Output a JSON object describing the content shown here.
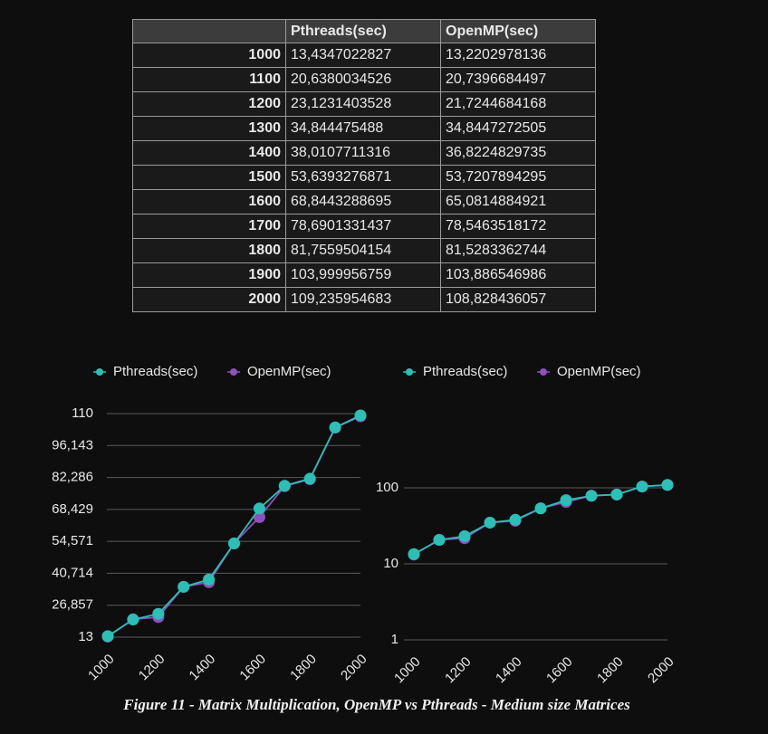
{
  "table": {
    "header": [
      "Pthreads(sec)",
      "OpenMP(sec)"
    ],
    "rows": [
      [
        "1000",
        "13,4347022827",
        "13,2202978136"
      ],
      [
        "1100",
        "20,6380034526",
        "20,7396684497"
      ],
      [
        "1200",
        "23,1231403528",
        "21,7244684168"
      ],
      [
        "1300",
        "34,844475488",
        "34,8447272505"
      ],
      [
        "1400",
        "38,0107711316",
        "36,8224829735"
      ],
      [
        "1500",
        "53,6393276871",
        "53,7207894295"
      ],
      [
        "1600",
        "68,8443288695",
        "65,0814884921"
      ],
      [
        "1700",
        "78,6901331437",
        "78,5463518172"
      ],
      [
        "1800",
        "81,7559504154",
        "81,5283362744"
      ],
      [
        "1900",
        "103,999956759",
        "103,886546986"
      ],
      [
        "2000",
        "109,235954683",
        "108,828436057"
      ]
    ]
  },
  "chart_data": [
    {
      "type": "line",
      "x": [
        1000,
        1100,
        1200,
        1300,
        1400,
        1500,
        1600,
        1700,
        1800,
        1900,
        2000
      ],
      "xlim": [
        1000,
        2000
      ],
      "xticks": [
        1000,
        1200,
        1400,
        1600,
        1800,
        2000
      ],
      "ylim": [
        13,
        110
      ],
      "yticks": [
        13,
        {
          "value": 26.857,
          "label": "26,857"
        },
        {
          "value": 40.714,
          "label": "40,714"
        },
        {
          "value": 54.571,
          "label": "54,571"
        },
        {
          "value": 68.429,
          "label": "68,429"
        },
        {
          "value": 82.286,
          "label": "82,286"
        },
        {
          "value": 96.143,
          "label": "96,143"
        },
        110
      ],
      "grid": true,
      "legend": "top",
      "log_scale": false,
      "series": [
        {
          "name": "Pthreads(sec)",
          "color": "#2bbfb6",
          "values": [
            13.4347022827,
            20.6380034526,
            23.1231403528,
            34.844475488,
            38.0107711316,
            53.6393276871,
            68.8443288695,
            78.6901331437,
            81.7559504154,
            103.999956759,
            109.235954683
          ]
        },
        {
          "name": "OpenMP(sec)",
          "color": "#8e4fbf",
          "values": [
            13.2202978136,
            20.7396684497,
            21.7244684168,
            34.8447272505,
            36.8224829735,
            53.7207894295,
            65.0814884921,
            78.5463518172,
            81.5283362744,
            103.886546986,
            108.828436057
          ]
        }
      ]
    },
    {
      "type": "line",
      "x": [
        1000,
        1100,
        1200,
        1300,
        1400,
        1500,
        1600,
        1700,
        1800,
        1900,
        2000
      ],
      "xlim": [
        1000,
        2000
      ],
      "xticks": [
        1000,
        1200,
        1400,
        1600,
        1800,
        2000
      ],
      "ylim": [
        1,
        1000
      ],
      "yticks": [
        1,
        10,
        100
      ],
      "grid": true,
      "legend": "top",
      "log_scale": true,
      "series": [
        {
          "name": "Pthreads(sec)",
          "color": "#2bbfb6",
          "values": [
            13.4347022827,
            20.6380034526,
            23.1231403528,
            34.844475488,
            38.0107711316,
            53.6393276871,
            68.8443288695,
            78.6901331437,
            81.7559504154,
            103.999956759,
            109.235954683
          ]
        },
        {
          "name": "OpenMP(sec)",
          "color": "#8e4fbf",
          "values": [
            13.2202978136,
            20.7396684497,
            21.7244684168,
            34.8447272505,
            36.8224829735,
            53.7207894295,
            65.0814884921,
            78.5463518172,
            81.5283362744,
            103.886546986,
            108.828436057
          ]
        }
      ]
    }
  ],
  "caption": "Figure 11 - Matrix Multiplication, OpenMP vs Pthreads - Medium size Matrices"
}
